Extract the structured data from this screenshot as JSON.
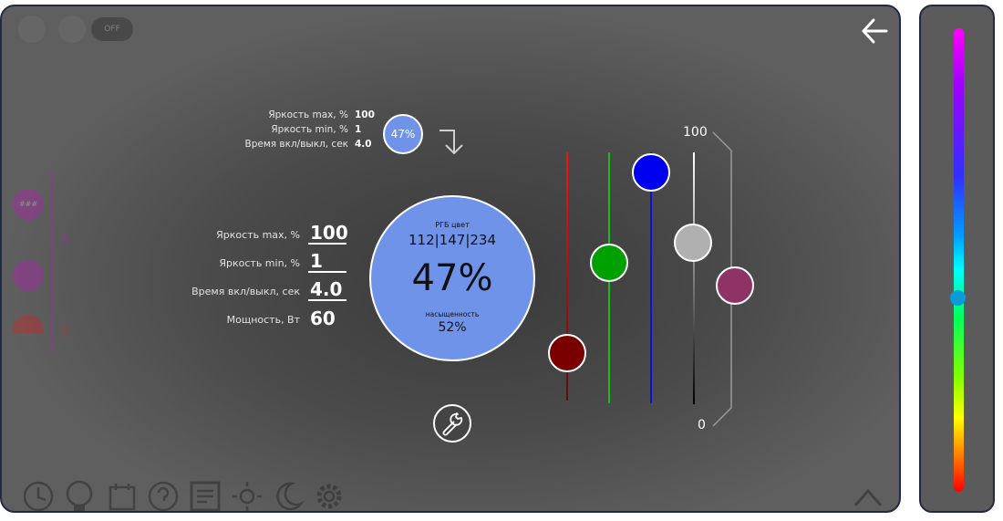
{
  "top_info": {
    "brightness_max_label": "Яркость max, %",
    "brightness_max_value": "100",
    "brightness_min_label": "Яркость min, %",
    "brightness_min_value": "1",
    "onoff_time_label": "Время вкл/выкл, сек",
    "onoff_time_value": "4.0",
    "preview_percent": "47%"
  },
  "settings": {
    "brightness_max_label": "Яркость max, %",
    "brightness_max_value": "100",
    "brightness_min_label": "Яркость min, %",
    "brightness_min_value": "1",
    "onoff_time_label": "Время вкл/выкл, сек",
    "onoff_time_value": "4.0",
    "power_label": "Мощность, Вт",
    "power_value": "60"
  },
  "color_circle": {
    "rgb_title": "РГБ цвет",
    "rgb_value": "112|147|234",
    "brightness_percent": "47%",
    "saturation_title": "насыщенность",
    "saturation_value": "52%",
    "fill": "#7093ea"
  },
  "sliders": {
    "scale_max": "100",
    "scale_min": "0",
    "red": 0.2,
    "green": 0.56,
    "blue": 0.92,
    "white": 0.64,
    "brightness": 0.47,
    "colors": {
      "red": "#7a0000",
      "green": "#00a000",
      "blue": "#0000f0",
      "white": "#b0b0b0",
      "mix": "#8f3366"
    }
  },
  "hue_slider": {
    "value": 0.58
  },
  "nav": {
    "back_icon": "arrow-left-icon"
  },
  "background_ui": {
    "pill_label": "OFF",
    "badge_label": "###"
  }
}
